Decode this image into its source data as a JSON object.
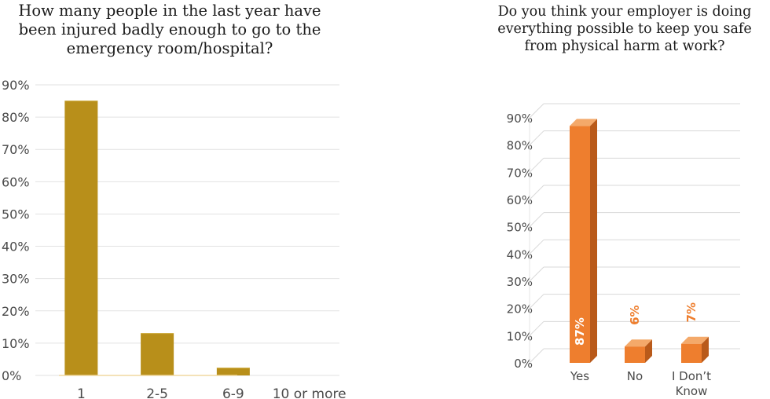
{
  "chart_data": [
    {
      "type": "bar",
      "title_lines": [
        "How many people in the last year have",
        "been injured badly enough to go to the",
        "emergency room/hospital?"
      ],
      "categories": [
        "1",
        "2-5",
        "6-9",
        "10 or more"
      ],
      "values": [
        85,
        13,
        2.3,
        0
      ],
      "ylim": [
        0,
        90
      ],
      "yticks": [
        "0%",
        "10%",
        "20%",
        "30%",
        "40%",
        "50%",
        "60%",
        "70%",
        "80%",
        "90%"
      ],
      "bar_color": "#b88f1a",
      "grid": true,
      "legend": "none"
    },
    {
      "type": "bar",
      "style": "3d",
      "title_lines": [
        "Do you think your employer is doing",
        "everything possible to keep you safe",
        "from physical harm at work?"
      ],
      "categories": [
        "Yes",
        "No",
        "I Don’t Know"
      ],
      "category_lines": [
        [
          "Yes"
        ],
        [
          "No"
        ],
        [
          "I Don’t",
          "Know"
        ]
      ],
      "values": [
        87,
        6,
        7
      ],
      "data_labels": [
        "87%",
        "6%",
        "7%"
      ],
      "ylim": [
        0,
        90
      ],
      "yticks": [
        "0%",
        "10%",
        "20%",
        "30%",
        "40%",
        "50%",
        "60%",
        "70%",
        "80%",
        "90%"
      ],
      "bar_color": "#ee7e2e",
      "bar_side_color": "#b95a1a",
      "bar_top_color": "#f4a96a",
      "label_color": "#ee7e2e",
      "grid": true,
      "legend": "none"
    }
  ]
}
